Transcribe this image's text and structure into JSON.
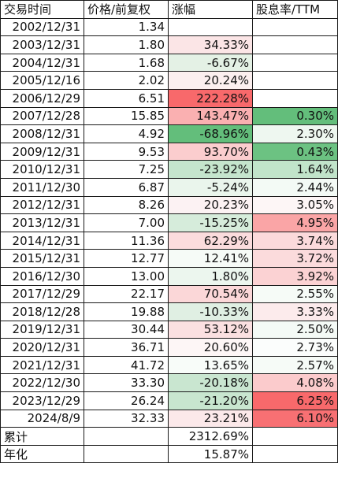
{
  "headers": [
    "交易时间",
    "价格/前复权",
    "涨幅",
    "股息率/TTM"
  ],
  "rows": [
    {
      "date": "2002/12/31",
      "price": "1.34",
      "change": "",
      "change_bg": "#ffffff",
      "yield": "",
      "yield_bg": "#ffffff"
    },
    {
      "date": "2003/12/31",
      "price": "1.80",
      "change": "34.33%",
      "change_bg": "#fbe5e6",
      "yield": "",
      "yield_bg": "#ffffff"
    },
    {
      "date": "2004/12/31",
      "price": "1.68",
      "change": "-6.67%",
      "change_bg": "#e4f1e5",
      "yield": "",
      "yield_bg": "#ffffff"
    },
    {
      "date": "2005/12/16",
      "price": "2.02",
      "change": "20.24%",
      "change_bg": "#fcefef",
      "yield": "",
      "yield_bg": "#ffffff"
    },
    {
      "date": "2006/12/29",
      "price": "6.51",
      "change": "222.28%",
      "change_bg": "#f8696b",
      "yield": "",
      "yield_bg": "#ffffff"
    },
    {
      "date": "2007/12/28",
      "price": "15.85",
      "change": "143.47%",
      "change_bg": "#fab0b1",
      "yield": "0.30%",
      "yield_bg": "#63be7b"
    },
    {
      "date": "2008/12/31",
      "price": "4.92",
      "change": "-68.96%",
      "change_bg": "#63be7b",
      "yield": "2.30%",
      "yield_bg": "#eef7f0"
    },
    {
      "date": "2009/12/31",
      "price": "9.53",
      "change": "93.70%",
      "change_bg": "#fbcdce",
      "yield": "0.43%",
      "yield_bg": "#6cc282"
    },
    {
      "date": "2010/12/31",
      "price": "7.25",
      "change": "-23.92%",
      "change_bg": "#c5e5cd",
      "yield": "1.64%",
      "yield_bg": "#c1e4ca"
    },
    {
      "date": "2011/12/30",
      "price": "6.87",
      "change": "-5.24%",
      "change_bg": "#eaf5ec",
      "yield": "2.44%",
      "yield_bg": "#f3faf5"
    },
    {
      "date": "2012/12/31",
      "price": "8.26",
      "change": "20.23%",
      "change_bg": "#fcf2f3",
      "yield": "3.05%",
      "yield_bg": "#fdf6f6"
    },
    {
      "date": "2013/12/31",
      "price": "7.00",
      "change": "-15.25%",
      "change_bg": "#d6ecdb",
      "yield": "4.95%",
      "yield_bg": "#faa5a6"
    },
    {
      "date": "2014/12/31",
      "price": "11.36",
      "change": "62.29%",
      "change_bg": "#fbdcdd",
      "yield": "3.74%",
      "yield_bg": "#fbdadb"
    },
    {
      "date": "2015/12/31",
      "price": "12.77",
      "change": "12.41%",
      "change_bg": "#f6fbf7",
      "yield": "3.72%",
      "yield_bg": "#fbdbdc"
    },
    {
      "date": "2016/12/30",
      "price": "13.00",
      "change": "1.80%",
      "change_bg": "#ecf6ee",
      "yield": "3.92%",
      "yield_bg": "#fbd2d3"
    },
    {
      "date": "2017/12/29",
      "price": "22.17",
      "change": "70.54%",
      "change_bg": "#fbd7d8",
      "yield": "2.55%",
      "yield_bg": "#f6fbf7"
    },
    {
      "date": "2018/12/28",
      "price": "19.88",
      "change": "-10.33%",
      "change_bg": "#e0efe3",
      "yield": "3.33%",
      "yield_bg": "#fcebec"
    },
    {
      "date": "2019/12/31",
      "price": "30.44",
      "change": "53.12%",
      "change_bg": "#fbe0e1",
      "yield": "2.50%",
      "yield_bg": "#f4faf6"
    },
    {
      "date": "2020/12/31",
      "price": "36.71",
      "change": "20.60%",
      "change_bg": "#fdf6f6",
      "yield": "2.73%",
      "yield_bg": "#fbfdfc"
    },
    {
      "date": "2021/12/31",
      "price": "41.72",
      "change": "13.65%",
      "change_bg": "#f8fcf9",
      "yield": "2.57%",
      "yield_bg": "#f6fbf7"
    },
    {
      "date": "2022/12/30",
      "price": "33.30",
      "change": "-20.18%",
      "change_bg": "#c9e6d0",
      "yield": "4.08%",
      "yield_bg": "#fbcbcc"
    },
    {
      "date": "2023/12/29",
      "price": "26.24",
      "change": "-21.20%",
      "change_bg": "#c8e6cf",
      "yield": "6.25%",
      "yield_bg": "#f8696b"
    },
    {
      "date": "2024/8/9",
      "price": "32.33",
      "change": "23.21%",
      "change_bg": "#fce9ea",
      "yield": "6.10%",
      "yield_bg": "#f87073"
    }
  ],
  "summary": [
    {
      "label": "累计",
      "value": "2312.69%"
    },
    {
      "label": "年化",
      "value": "15.87%"
    }
  ]
}
